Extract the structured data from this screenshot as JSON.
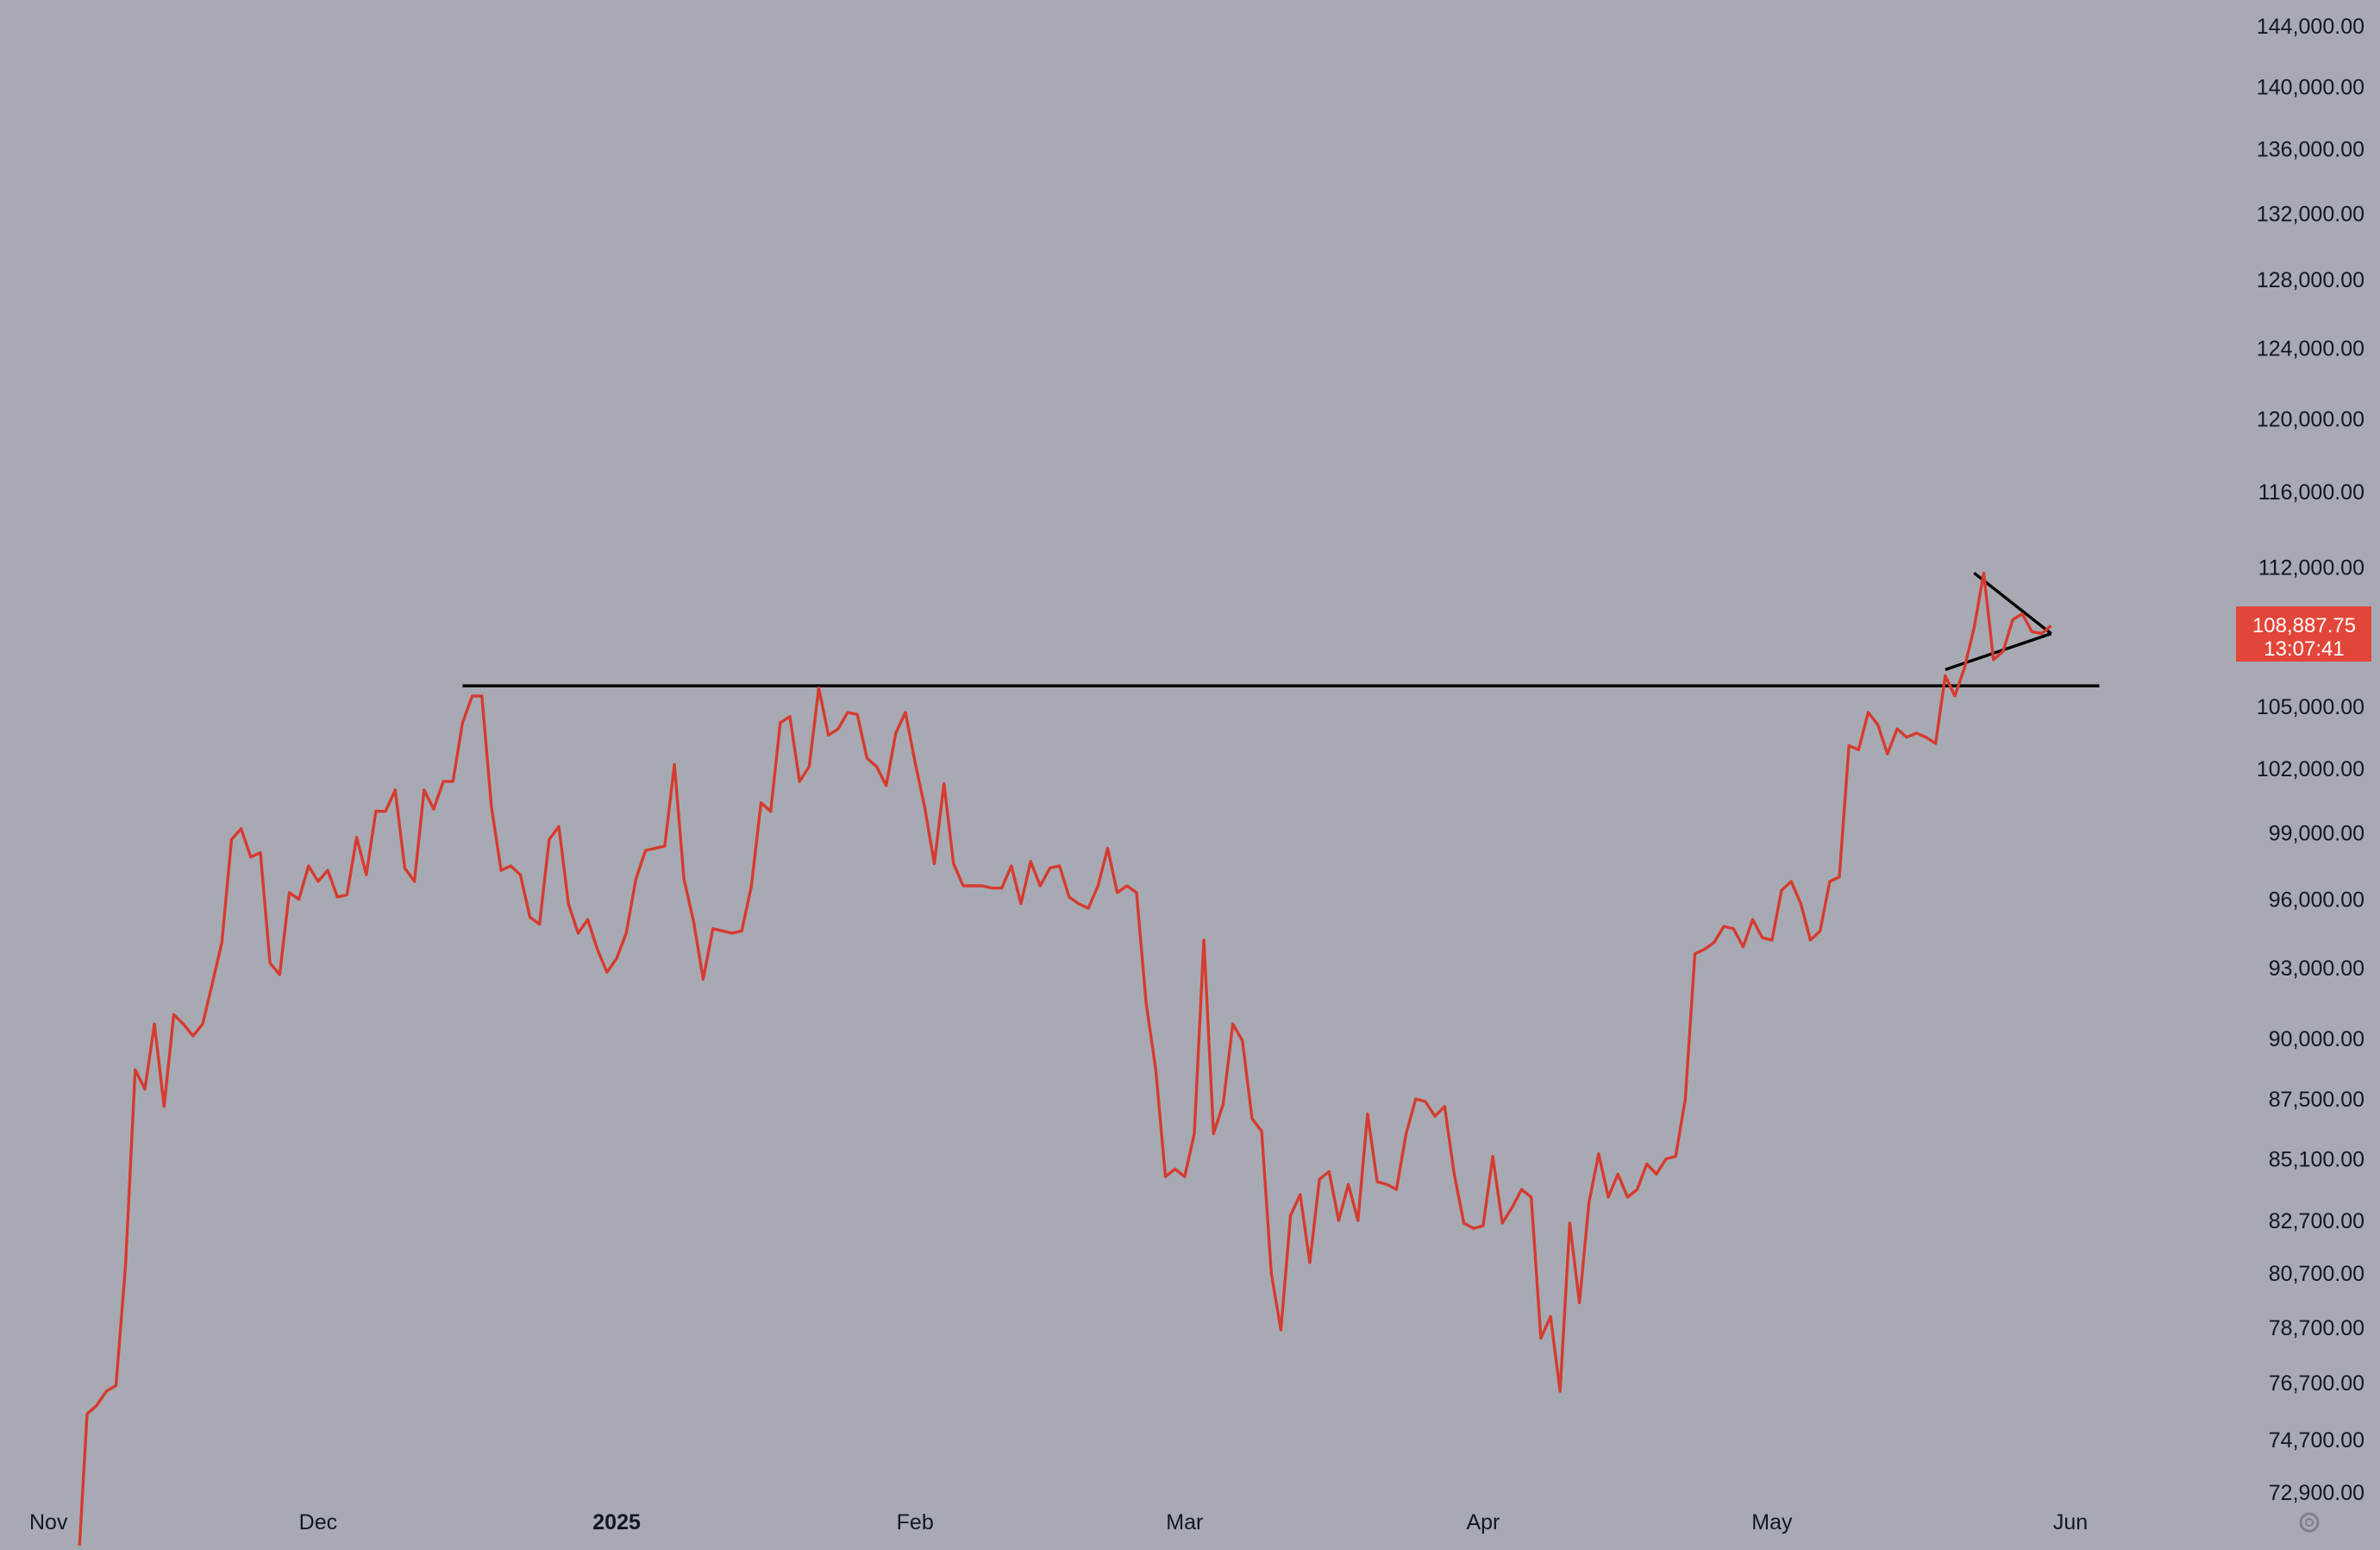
{
  "chart_data": {
    "type": "line",
    "symbol_color": "#d63b2f",
    "background": "#a8aab3",
    "annotation_color": "#000000",
    "price_label_bg": "#e2463a",
    "y_scale": "log",
    "y_ticks": [
      {
        "value": 144000,
        "label": "144,000.00"
      },
      {
        "value": 140000,
        "label": "140,000.00"
      },
      {
        "value": 136000,
        "label": "136,000.00"
      },
      {
        "value": 132000,
        "label": "132,000.00"
      },
      {
        "value": 128000,
        "label": "128,000.00"
      },
      {
        "value": 124000,
        "label": "124,000.00"
      },
      {
        "value": 120000,
        "label": "120,000.00"
      },
      {
        "value": 116000,
        "label": "116,000.00"
      },
      {
        "value": 112000,
        "label": "112,000.00"
      },
      {
        "value": 105000,
        "label": "105,000.00"
      },
      {
        "value": 102000,
        "label": "102,000.00"
      },
      {
        "value": 99000,
        "label": "99,000.00"
      },
      {
        "value": 96000,
        "label": "96,000.00"
      },
      {
        "value": 93000,
        "label": "93,000.00"
      },
      {
        "value": 90000,
        "label": "90,000.00"
      },
      {
        "value": 87500,
        "label": "87,500.00"
      },
      {
        "value": 85100,
        "label": "85,100.00"
      },
      {
        "value": 82700,
        "label": "82,700.00"
      },
      {
        "value": 80700,
        "label": "80,700.00"
      },
      {
        "value": 78700,
        "label": "78,700.00"
      },
      {
        "value": 76700,
        "label": "76,700.00"
      },
      {
        "value": 74700,
        "label": "74,700.00"
      },
      {
        "value": 72900,
        "label": "72,900.00"
      }
    ],
    "x_ticks": [
      {
        "date": "2024-11-01",
        "label": "Nov",
        "bold": false
      },
      {
        "date": "2024-12-01",
        "label": "Dec",
        "bold": false
      },
      {
        "date": "2025-01-01",
        "label": "2025",
        "bold": true
      },
      {
        "date": "2025-02-01",
        "label": "Feb",
        "bold": false
      },
      {
        "date": "2025-03-01",
        "label": "Mar",
        "bold": false
      },
      {
        "date": "2025-04-01",
        "label": "Apr",
        "bold": false
      },
      {
        "date": "2025-05-01",
        "label": "May",
        "bold": false
      },
      {
        "date": "2025-06-01",
        "label": "Jun",
        "bold": false
      }
    ],
    "last_price": {
      "value": 108887.75,
      "price_label": "108,887.75",
      "countdown": "13:07:41"
    },
    "series": [
      {
        "x": [
          "2024-11-06",
          "2024-11-07",
          "2024-11-08",
          "2024-11-09",
          "2024-11-10",
          "2024-11-11",
          "2024-11-12",
          "2024-11-13",
          "2024-11-14",
          "2024-11-15",
          "2024-11-16",
          "2024-11-17",
          "2024-11-18",
          "2024-11-19",
          "2024-11-20",
          "2024-11-21",
          "2024-11-22",
          "2024-11-23",
          "2024-11-24",
          "2024-11-25",
          "2024-11-26",
          "2024-11-27",
          "2024-11-28",
          "2024-11-29",
          "2024-11-30",
          "2024-12-01",
          "2024-12-02",
          "2024-12-03",
          "2024-12-04",
          "2024-12-05",
          "2024-12-06",
          "2024-12-07",
          "2024-12-08",
          "2024-12-09",
          "2024-12-10",
          "2024-12-11",
          "2024-12-12",
          "2024-12-13",
          "2024-12-14",
          "2024-12-15",
          "2024-12-16",
          "2024-12-17",
          "2024-12-18",
          "2024-12-19",
          "2024-12-20",
          "2024-12-21",
          "2024-12-22",
          "2024-12-23",
          "2024-12-24",
          "2024-12-25",
          "2024-12-26",
          "2024-12-27",
          "2024-12-28",
          "2024-12-29",
          "2024-12-30",
          "2024-12-31",
          "2025-01-01",
          "2025-01-02",
          "2025-01-03",
          "2025-01-04",
          "2025-01-05",
          "2025-01-06",
          "2025-01-07",
          "2025-01-08",
          "2025-01-09",
          "2025-01-10",
          "2025-01-11",
          "2025-01-12",
          "2025-01-13",
          "2025-01-14",
          "2025-01-15",
          "2025-01-16",
          "2025-01-17",
          "2025-01-18",
          "2025-01-19",
          "2025-01-20",
          "2025-01-21",
          "2025-01-22",
          "2025-01-23",
          "2025-01-24",
          "2025-01-25",
          "2025-01-26",
          "2025-01-27",
          "2025-01-28",
          "2025-01-29",
          "2025-01-30",
          "2025-01-31",
          "2025-02-01",
          "2025-02-02",
          "2025-02-03",
          "2025-02-04",
          "2025-02-05",
          "2025-02-06",
          "2025-02-07",
          "2025-02-08",
          "2025-02-09",
          "2025-02-10",
          "2025-02-11",
          "2025-02-12",
          "2025-02-13",
          "2025-02-14",
          "2025-02-15",
          "2025-02-16",
          "2025-02-17",
          "2025-02-18",
          "2025-02-19",
          "2025-02-20",
          "2025-02-21",
          "2025-02-22",
          "2025-02-23",
          "2025-02-24",
          "2025-02-25",
          "2025-02-26",
          "2025-02-27",
          "2025-02-28",
          "2025-03-01",
          "2025-03-02",
          "2025-03-03",
          "2025-03-04",
          "2025-03-05",
          "2025-03-06",
          "2025-03-07",
          "2025-03-08",
          "2025-03-09",
          "2025-03-10",
          "2025-03-11",
          "2025-03-12",
          "2025-03-13",
          "2025-03-14",
          "2025-03-15",
          "2025-03-16",
          "2025-03-17",
          "2025-03-18",
          "2025-03-19",
          "2025-03-20",
          "2025-03-21",
          "2025-03-22",
          "2025-03-23",
          "2025-03-24",
          "2025-03-25",
          "2025-03-26",
          "2025-03-27",
          "2025-03-28",
          "2025-03-29",
          "2025-03-30",
          "2025-03-31",
          "2025-04-01",
          "2025-04-02",
          "2025-04-03",
          "2025-04-04",
          "2025-04-05",
          "2025-04-06",
          "2025-04-07",
          "2025-04-08",
          "2025-04-09",
          "2025-04-10",
          "2025-04-11",
          "2025-04-12",
          "2025-04-13",
          "2025-04-14",
          "2025-04-15",
          "2025-04-16",
          "2025-04-17",
          "2025-04-18",
          "2025-04-19",
          "2025-04-20",
          "2025-04-21",
          "2025-04-22",
          "2025-04-23",
          "2025-04-24",
          "2025-04-25",
          "2025-04-26",
          "2025-04-27",
          "2025-04-28",
          "2025-04-29",
          "2025-04-30",
          "2025-05-01",
          "2025-05-02",
          "2025-05-03",
          "2025-05-04",
          "2025-05-05",
          "2025-05-06",
          "2025-05-07",
          "2025-05-08",
          "2025-05-09",
          "2025-05-10",
          "2025-05-11",
          "2025-05-12",
          "2025-05-13",
          "2025-05-14",
          "2025-05-15",
          "2025-05-16",
          "2025-05-17",
          "2025-05-18",
          "2025-05-19",
          "2025-05-20",
          "2025-05-21",
          "2025-05-22",
          "2025-05-23",
          "2025-05-24",
          "2025-05-25",
          "2025-05-26",
          "2025-05-27",
          "2025-05-28",
          "2025-05-29",
          "2025-05-30"
        ],
        "values": [
          69900,
          75600,
          75900,
          76400,
          76600,
          81000,
          88700,
          87900,
          90600,
          87200,
          91000,
          90600,
          90100,
          90600,
          92300,
          94100,
          98700,
          99200,
          97900,
          98100,
          93200,
          92700,
          96300,
          96000,
          97500,
          96800,
          97300,
          96100,
          96200,
          98800,
          97100,
          100000,
          100000,
          101000,
          97400,
          96800,
          101000,
          100100,
          101400,
          101400,
          104200,
          105500,
          105500,
          100200,
          97300,
          97500,
          97100,
          95200,
          94900,
          98700,
          99300,
          95800,
          94500,
          95100,
          93800,
          92800,
          93400,
          94500,
          96900,
          98200,
          98300,
          98400,
          102200,
          96900,
          95000,
          92500,
          94700,
          94600,
          94500,
          94600,
          96600,
          100400,
          100000,
          104200,
          104500,
          101400,
          102100,
          105900,
          103600,
          103900,
          104700,
          104600,
          102500,
          102100,
          101200,
          103700,
          104700,
          102300,
          100200,
          97600,
          101300,
          97600,
          96600,
          96600,
          96600,
          96500,
          96500,
          97500,
          95800,
          97700,
          96600,
          97400,
          97500,
          96100,
          95800,
          95600,
          96600,
          98300,
          96300,
          96600,
          96300,
          91500,
          88700,
          84400,
          84700,
          84400,
          86100,
          94200,
          86100,
          87300,
          90600,
          89900,
          86700,
          86200,
          80700,
          78600,
          82900,
          83700,
          81100,
          84300,
          84600,
          82700,
          84100,
          82700,
          86900,
          84200,
          84100,
          83900,
          86100,
          87500,
          87400,
          86800,
          87200,
          84500,
          82600,
          82400,
          82500,
          85200,
          82600,
          83200,
          83900,
          83600,
          78300,
          79100,
          76400,
          82600,
          79600,
          83400,
          85300,
          83600,
          84500,
          83600,
          83900,
          84900,
          84500,
          85100,
          85200,
          87500,
          93600,
          93800,
          94100,
          94800,
          94700,
          93900,
          95100,
          94300,
          94200,
          96400,
          96800,
          95800,
          94200,
          94600,
          96800,
          97000,
          103100,
          102900,
          104700,
          104100,
          102700,
          103900,
          103500,
          103700,
          103500,
          103200,
          106500,
          105500,
          106900,
          108900,
          111700,
          107300,
          107700,
          109300,
          109600,
          108700,
          108600,
          109000
        ]
      }
    ],
    "annotations": {
      "horizontal_line": {
        "value": 106000,
        "from": "2024-12-16",
        "to": "2025-06-04"
      },
      "pennant": {
        "upper": [
          {
            "date": "2025-05-22",
            "value": 111700
          },
          {
            "date": "2025-05-30",
            "value": 108600
          }
        ],
        "lower": [
          {
            "date": "2025-05-19",
            "value": 106800
          },
          {
            "date": "2025-05-30",
            "value": 108600
          }
        ]
      }
    }
  }
}
